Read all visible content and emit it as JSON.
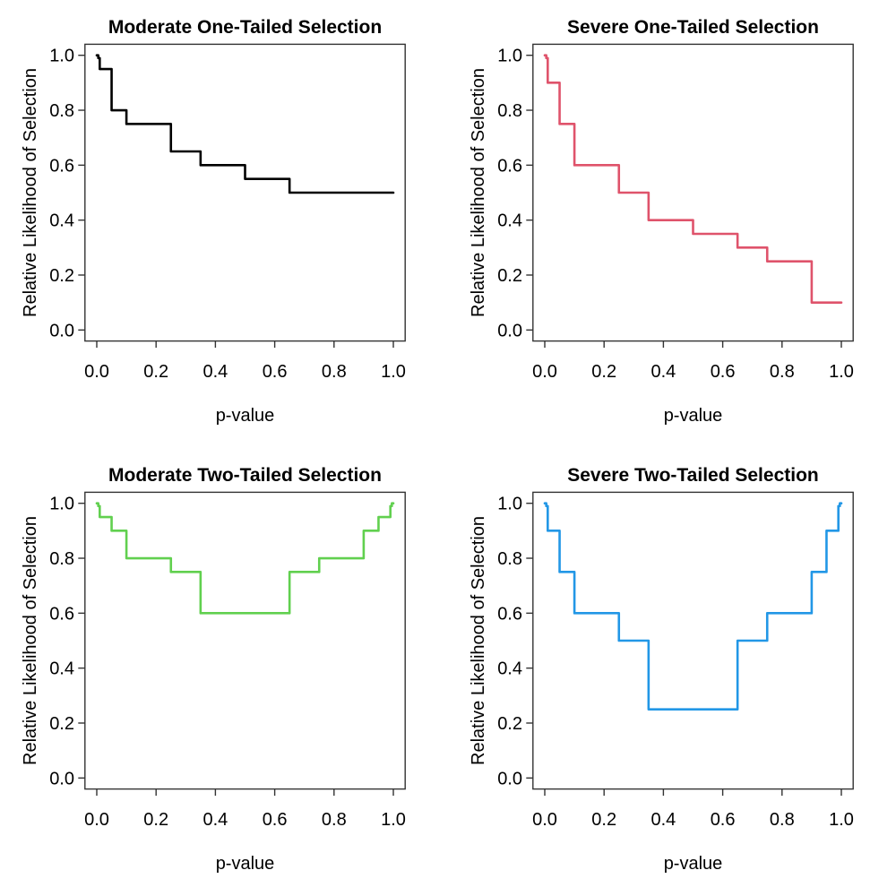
{
  "figure": {
    "background": "#ffffff",
    "axis_color": "#333333",
    "text_color": "#000000"
  },
  "chart_data": [
    {
      "type": "line",
      "subtype": "step",
      "title": "Moderate One-Tailed Selection",
      "xlabel": "p-value",
      "ylabel": "Relative Likelihood of Selection",
      "color": "#000000",
      "xlim": [
        0,
        1
      ],
      "ylim": [
        0,
        1
      ],
      "grid": false,
      "legend": "none",
      "x_tick_labels": [
        "0.0",
        "0.2",
        "0.4",
        "0.6",
        "0.8",
        "1.0"
      ],
      "y_tick_labels": [
        "0.0",
        "0.2",
        "0.4",
        "0.6",
        "0.8",
        "1.0"
      ],
      "xticks": [
        0.0,
        0.2,
        0.4,
        0.6,
        0.8,
        1.0
      ],
      "yticks": [
        0.0,
        0.2,
        0.4,
        0.6,
        0.8,
        1.0
      ],
      "steps": [
        [
          0,
          1.0
        ],
        [
          0.005,
          0.99
        ],
        [
          0.01,
          0.95
        ],
        [
          0.05,
          0.8
        ],
        [
          0.1,
          0.75
        ],
        [
          0.25,
          0.65
        ],
        [
          0.35,
          0.6
        ],
        [
          0.5,
          0.55
        ],
        [
          0.65,
          0.5
        ]
      ],
      "x_end": 1.0
    },
    {
      "type": "line",
      "subtype": "step",
      "title": "Severe One-Tailed Selection",
      "xlabel": "p-value",
      "ylabel": "Relative Likelihood of Selection",
      "color": "#DF536B",
      "xlim": [
        0,
        1
      ],
      "ylim": [
        0,
        1
      ],
      "grid": false,
      "legend": "none",
      "x_tick_labels": [
        "0.0",
        "0.2",
        "0.4",
        "0.6",
        "0.8",
        "1.0"
      ],
      "y_tick_labels": [
        "0.0",
        "0.2",
        "0.4",
        "0.6",
        "0.8",
        "1.0"
      ],
      "xticks": [
        0.0,
        0.2,
        0.4,
        0.6,
        0.8,
        1.0
      ],
      "yticks": [
        0.0,
        0.2,
        0.4,
        0.6,
        0.8,
        1.0
      ],
      "steps": [
        [
          0,
          1.0
        ],
        [
          0.005,
          0.99
        ],
        [
          0.01,
          0.9
        ],
        [
          0.05,
          0.75
        ],
        [
          0.1,
          0.6
        ],
        [
          0.25,
          0.5
        ],
        [
          0.35,
          0.4
        ],
        [
          0.5,
          0.35
        ],
        [
          0.65,
          0.3
        ],
        [
          0.75,
          0.25
        ],
        [
          0.9,
          0.1
        ]
      ],
      "x_end": 1.0
    },
    {
      "type": "line",
      "subtype": "step",
      "title": "Moderate Two-Tailed Selection",
      "xlabel": "p-value",
      "ylabel": "Relative Likelihood of Selection",
      "color": "#61D04F",
      "xlim": [
        0,
        1
      ],
      "ylim": [
        0,
        1
      ],
      "grid": false,
      "legend": "none",
      "x_tick_labels": [
        "0.0",
        "0.2",
        "0.4",
        "0.6",
        "0.8",
        "1.0"
      ],
      "y_tick_labels": [
        "0.0",
        "0.2",
        "0.4",
        "0.6",
        "0.8",
        "1.0"
      ],
      "xticks": [
        0.0,
        0.2,
        0.4,
        0.6,
        0.8,
        1.0
      ],
      "yticks": [
        0.0,
        0.2,
        0.4,
        0.6,
        0.8,
        1.0
      ],
      "steps": [
        [
          0,
          1.0
        ],
        [
          0.005,
          0.99
        ],
        [
          0.01,
          0.95
        ],
        [
          0.05,
          0.9
        ],
        [
          0.1,
          0.8
        ],
        [
          0.25,
          0.75
        ],
        [
          0.35,
          0.6
        ],
        [
          0.65,
          0.75
        ],
        [
          0.75,
          0.8
        ],
        [
          0.9,
          0.9
        ],
        [
          0.95,
          0.95
        ],
        [
          0.99,
          0.99
        ],
        [
          0.995,
          1.0
        ]
      ],
      "x_end": 1.0
    },
    {
      "type": "line",
      "subtype": "step",
      "title": "Severe Two-Tailed Selection",
      "xlabel": "p-value",
      "ylabel": "Relative Likelihood of Selection",
      "color": "#2297E6",
      "xlim": [
        0,
        1
      ],
      "ylim": [
        0,
        1
      ],
      "grid": false,
      "legend": "none",
      "x_tick_labels": [
        "0.0",
        "0.2",
        "0.4",
        "0.6",
        "0.8",
        "1.0"
      ],
      "y_tick_labels": [
        "0.0",
        "0.2",
        "0.4",
        "0.6",
        "0.8",
        "1.0"
      ],
      "xticks": [
        0.0,
        0.2,
        0.4,
        0.6,
        0.8,
        1.0
      ],
      "yticks": [
        0.0,
        0.2,
        0.4,
        0.6,
        0.8,
        1.0
      ],
      "steps": [
        [
          0,
          1.0
        ],
        [
          0.005,
          0.99
        ],
        [
          0.01,
          0.9
        ],
        [
          0.05,
          0.75
        ],
        [
          0.1,
          0.6
        ],
        [
          0.25,
          0.5
        ],
        [
          0.35,
          0.25
        ],
        [
          0.65,
          0.5
        ],
        [
          0.75,
          0.6
        ],
        [
          0.9,
          0.75
        ],
        [
          0.95,
          0.9
        ],
        [
          0.99,
          0.99
        ],
        [
          0.995,
          1.0
        ]
      ],
      "x_end": 1.0
    }
  ]
}
